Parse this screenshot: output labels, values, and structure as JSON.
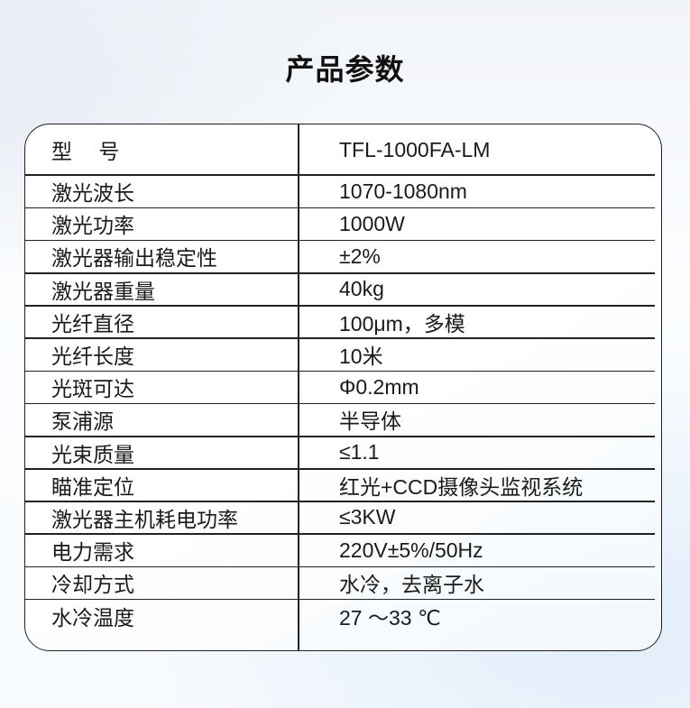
{
  "title": "产品参数",
  "table": {
    "rows": [
      {
        "label": "型　 号",
        "value": "TFL-1000FA-LM"
      },
      {
        "label": "激光波长",
        "value": "1070-1080nm"
      },
      {
        "label": "激光功率",
        "value": "1000W"
      },
      {
        "label": "激光器输出稳定性",
        "value": "±2%"
      },
      {
        "label": "激光器重量",
        "value": "40kg"
      },
      {
        "label": "光纤直径",
        "value": "100μm，多模"
      },
      {
        "label": "光纤长度",
        "value": "10米"
      },
      {
        "label": "光斑可达",
        "value": "Φ0.2mm"
      },
      {
        "label": "泵浦源",
        "value": "半导体"
      },
      {
        "label": "光束质量",
        "value": "≤1.1"
      },
      {
        "label": "瞄准定位",
        "value": "红光+CCD摄像头监视系统"
      },
      {
        "label": "激光器主机耗电功率",
        "value": "≤3KW"
      },
      {
        "label": "电力需求",
        "value": "220V±5%/50Hz"
      },
      {
        "label": "冷却方式",
        "value": "水冷，去离子水"
      },
      {
        "label": "水冷温度",
        "value": "27 ～33 ℃"
      }
    ]
  },
  "colors": {
    "line": "#222222",
    "text": "#1a1a1a",
    "background_tint": "#e2edfa"
  }
}
